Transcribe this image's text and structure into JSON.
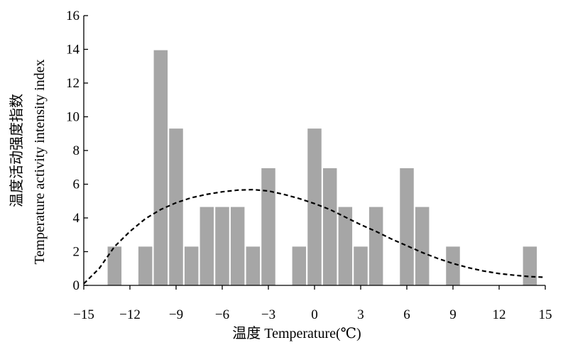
{
  "chart_data": {
    "type": "bar",
    "xlabel": "温度 Temperature(℃)",
    "ylabel_line1": "温度活动强度指数",
    "ylabel_line2": "Temperature activity intensity index",
    "xlim": [
      -15,
      15
    ],
    "ylim": [
      0,
      16
    ],
    "xticks": [
      -15,
      -12,
      -9,
      -6,
      -3,
      0,
      3,
      6,
      9,
      12,
      15
    ],
    "xtick_labels": [
      "−15",
      "−12",
      "−9",
      "−6",
      "−3",
      "0",
      "3",
      "6",
      "9",
      "12",
      "15"
    ],
    "yticks": [
      0,
      2,
      4,
      6,
      8,
      10,
      12,
      14,
      16
    ],
    "ytick_labels": [
      "0",
      "2",
      "4",
      "6",
      "8",
      "10",
      "12",
      "14",
      "16"
    ],
    "grid": false,
    "bars": [
      {
        "x": -13,
        "value": 2.3
      },
      {
        "x": -11,
        "value": 2.3
      },
      {
        "x": -10,
        "value": 13.95
      },
      {
        "x": -9,
        "value": 9.3
      },
      {
        "x": -8,
        "value": 2.3
      },
      {
        "x": -7,
        "value": 4.65
      },
      {
        "x": -6,
        "value": 4.65
      },
      {
        "x": -5,
        "value": 4.65
      },
      {
        "x": -4,
        "value": 2.3
      },
      {
        "x": -3,
        "value": 6.95
      },
      {
        "x": -1,
        "value": 2.3
      },
      {
        "x": 0,
        "value": 9.3
      },
      {
        "x": 1,
        "value": 6.95
      },
      {
        "x": 2,
        "value": 4.65
      },
      {
        "x": 3,
        "value": 2.3
      },
      {
        "x": 4,
        "value": 4.65
      },
      {
        "x": 6,
        "value": 6.95
      },
      {
        "x": 7,
        "value": 4.65
      },
      {
        "x": 9,
        "value": 2.3
      },
      {
        "x": 14,
        "value": 2.3
      }
    ],
    "fitted_curve": {
      "style": "dashed",
      "x": [
        -15,
        -14,
        -13,
        -12,
        -11,
        -10,
        -9,
        -8,
        -7,
        -6,
        -5,
        -4,
        -3,
        -2,
        -1,
        0,
        1,
        2,
        3,
        4,
        5,
        6,
        7,
        8,
        9,
        10,
        11,
        12,
        13,
        14,
        15
      ],
      "y": [
        0.1,
        1.0,
        2.3,
        3.2,
        3.95,
        4.5,
        4.9,
        5.2,
        5.4,
        5.55,
        5.65,
        5.68,
        5.6,
        5.4,
        5.15,
        4.85,
        4.5,
        4.05,
        3.6,
        3.2,
        2.75,
        2.35,
        1.95,
        1.6,
        1.3,
        1.05,
        0.85,
        0.7,
        0.6,
        0.52,
        0.48
      ]
    }
  }
}
